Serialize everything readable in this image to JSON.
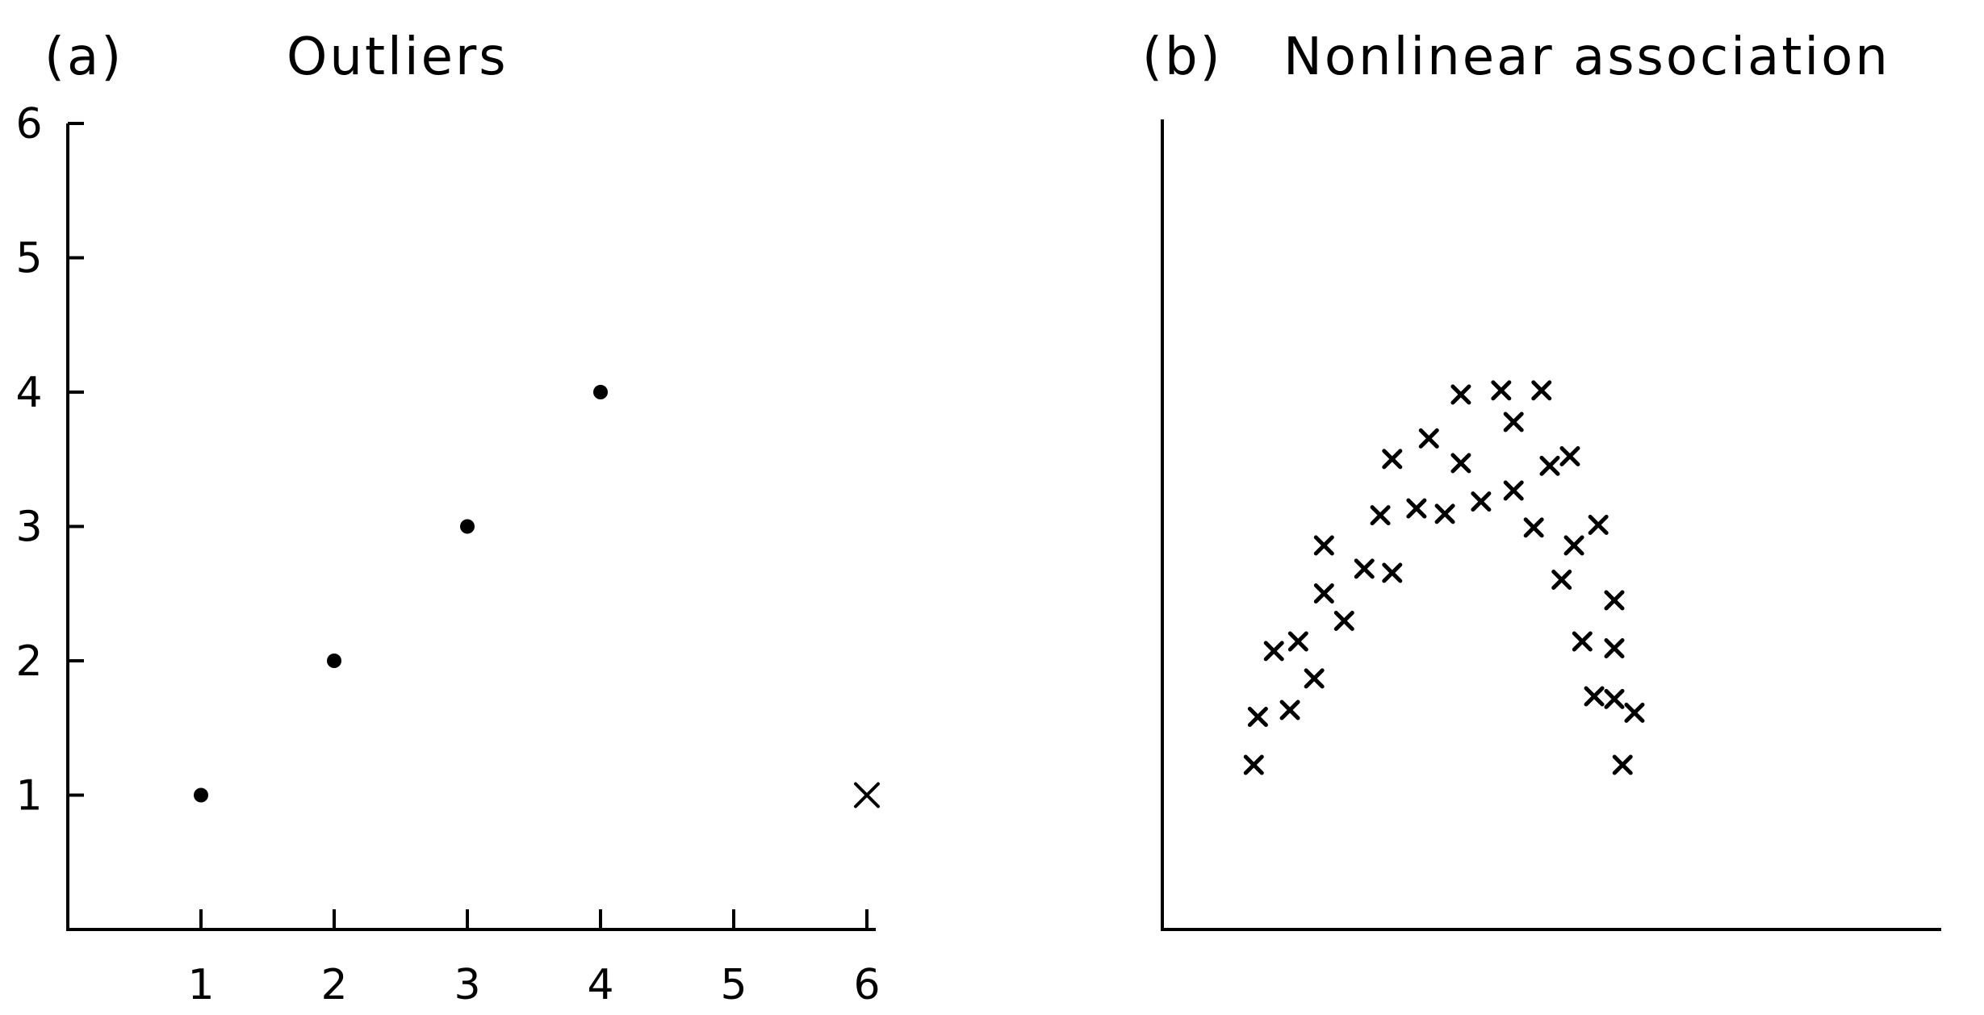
{
  "chart_data": [
    {
      "type": "scatter",
      "panel_label": "(a)",
      "title": "Outliers",
      "xlim": [
        0,
        6.5
      ],
      "ylim": [
        0,
        6
      ],
      "x_ticks": [
        1,
        2,
        3,
        4,
        5,
        6
      ],
      "y_ticks": [
        1,
        2,
        3,
        4,
        5,
        6
      ],
      "grid": false,
      "series": [
        {
          "marker": "dot",
          "points": [
            [
              1,
              1
            ],
            [
              2,
              2
            ],
            [
              3,
              3
            ],
            [
              4,
              4
            ]
          ]
        },
        {
          "marker": "x",
          "points": [
            [
              6,
              1
            ]
          ]
        }
      ]
    },
    {
      "type": "scatter",
      "panel_label": "(b)",
      "title": "Nonlinear association",
      "xlim": [
        0,
        10
      ],
      "ylim": [
        0,
        6
      ],
      "x_ticks": [],
      "y_ticks": [],
      "grid": false,
      "series": [
        {
          "marker": "x",
          "points": [
            [
              1.77,
              1.2
            ],
            [
              1.85,
              1.55
            ],
            [
              2.16,
              2.03
            ],
            [
              2.47,
              1.6
            ],
            [
              2.63,
              2.1
            ],
            [
              2.94,
              1.83
            ],
            [
              3.13,
              2.8
            ],
            [
              3.13,
              2.45
            ],
            [
              3.52,
              2.25
            ],
            [
              3.91,
              2.63
            ],
            [
              4.22,
              3.02
            ],
            [
              4.45,
              3.43
            ],
            [
              4.45,
              2.6
            ],
            [
              4.92,
              3.07
            ],
            [
              5.16,
              3.58
            ],
            [
              5.47,
              3.03
            ],
            [
              5.78,
              3.4
            ],
            [
              5.78,
              3.9
            ],
            [
              6.17,
              3.12
            ],
            [
              6.56,
              3.93
            ],
            [
              6.8,
              3.7
            ],
            [
              6.8,
              3.2
            ],
            [
              7.19,
              2.93
            ],
            [
              7.34,
              3.93
            ],
            [
              7.5,
              3.38
            ],
            [
              7.73,
              2.55
            ],
            [
              7.89,
              3.45
            ],
            [
              7.97,
              2.8
            ],
            [
              8.13,
              2.1
            ],
            [
              8.36,
              1.7
            ],
            [
              8.44,
              2.95
            ],
            [
              8.75,
              2.4
            ],
            [
              8.75,
              2.05
            ],
            [
              8.75,
              1.68
            ],
            [
              8.91,
              1.2
            ],
            [
              9.14,
              1.58
            ]
          ]
        }
      ]
    }
  ]
}
